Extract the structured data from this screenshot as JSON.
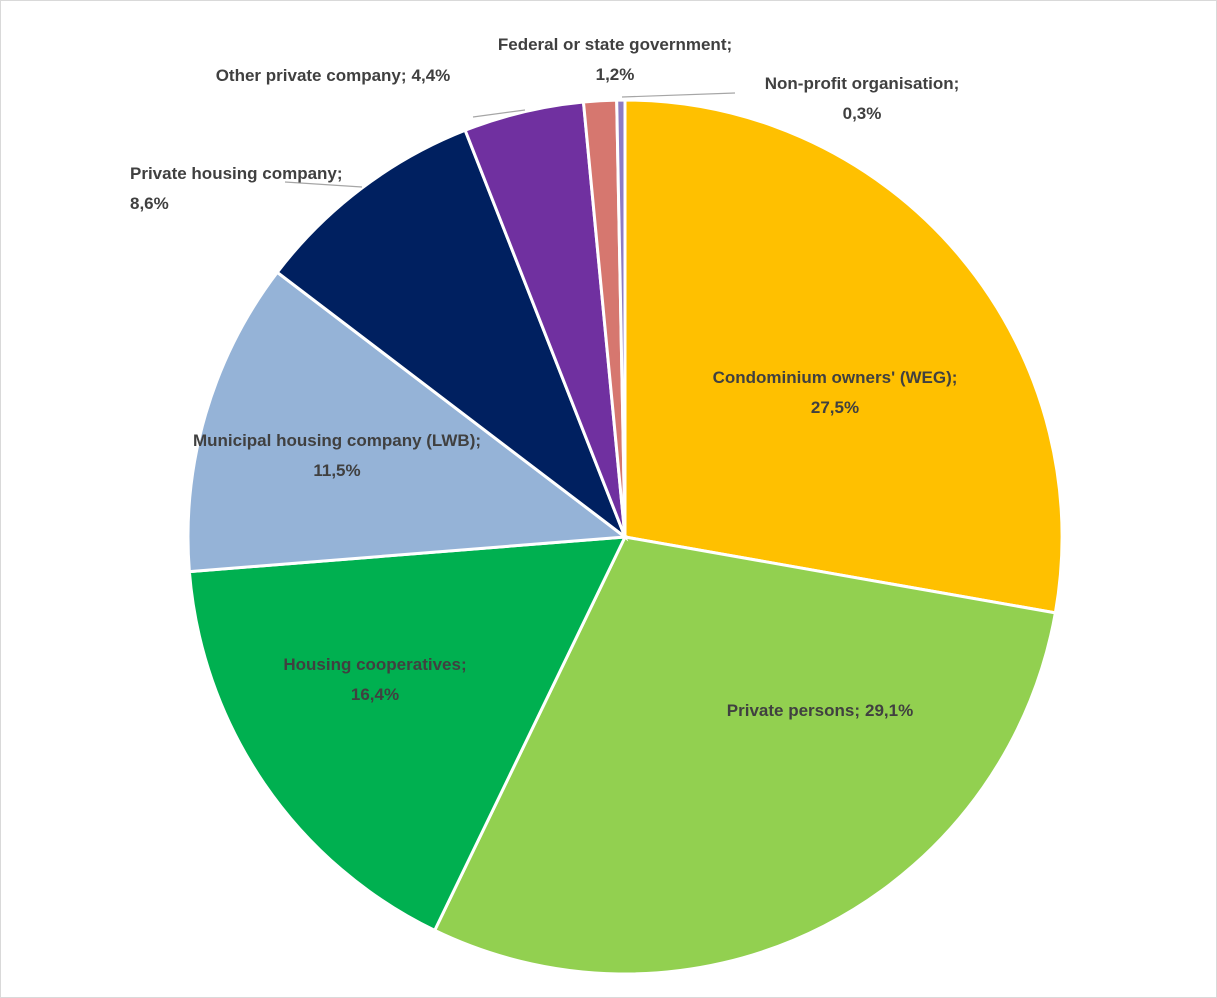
{
  "chart_data": {
    "type": "pie",
    "categories": [
      "Condominium owners' (WEG);",
      "Private persons;",
      "Housing cooperatives;",
      "Municipal housing company (LWB);",
      "Private housing company;",
      "Other private company;",
      "Federal or state government;",
      "Non-profit organisation;"
    ],
    "values": [
      27.5,
      29.1,
      16.4,
      11.5,
      8.6,
      4.4,
      1.2,
      0.3
    ],
    "value_labels": [
      "27,5%",
      "29,1%",
      "16,4%",
      "11,5%",
      "8,6%",
      "4,4%",
      "1,2%",
      "0,3%"
    ],
    "colors": [
      "#ffc000",
      "#92d050",
      "#00b050",
      "#95b3d7",
      "#002060",
      "#7030a0",
      "#d6776f",
      "#8e7cc3"
    ]
  }
}
